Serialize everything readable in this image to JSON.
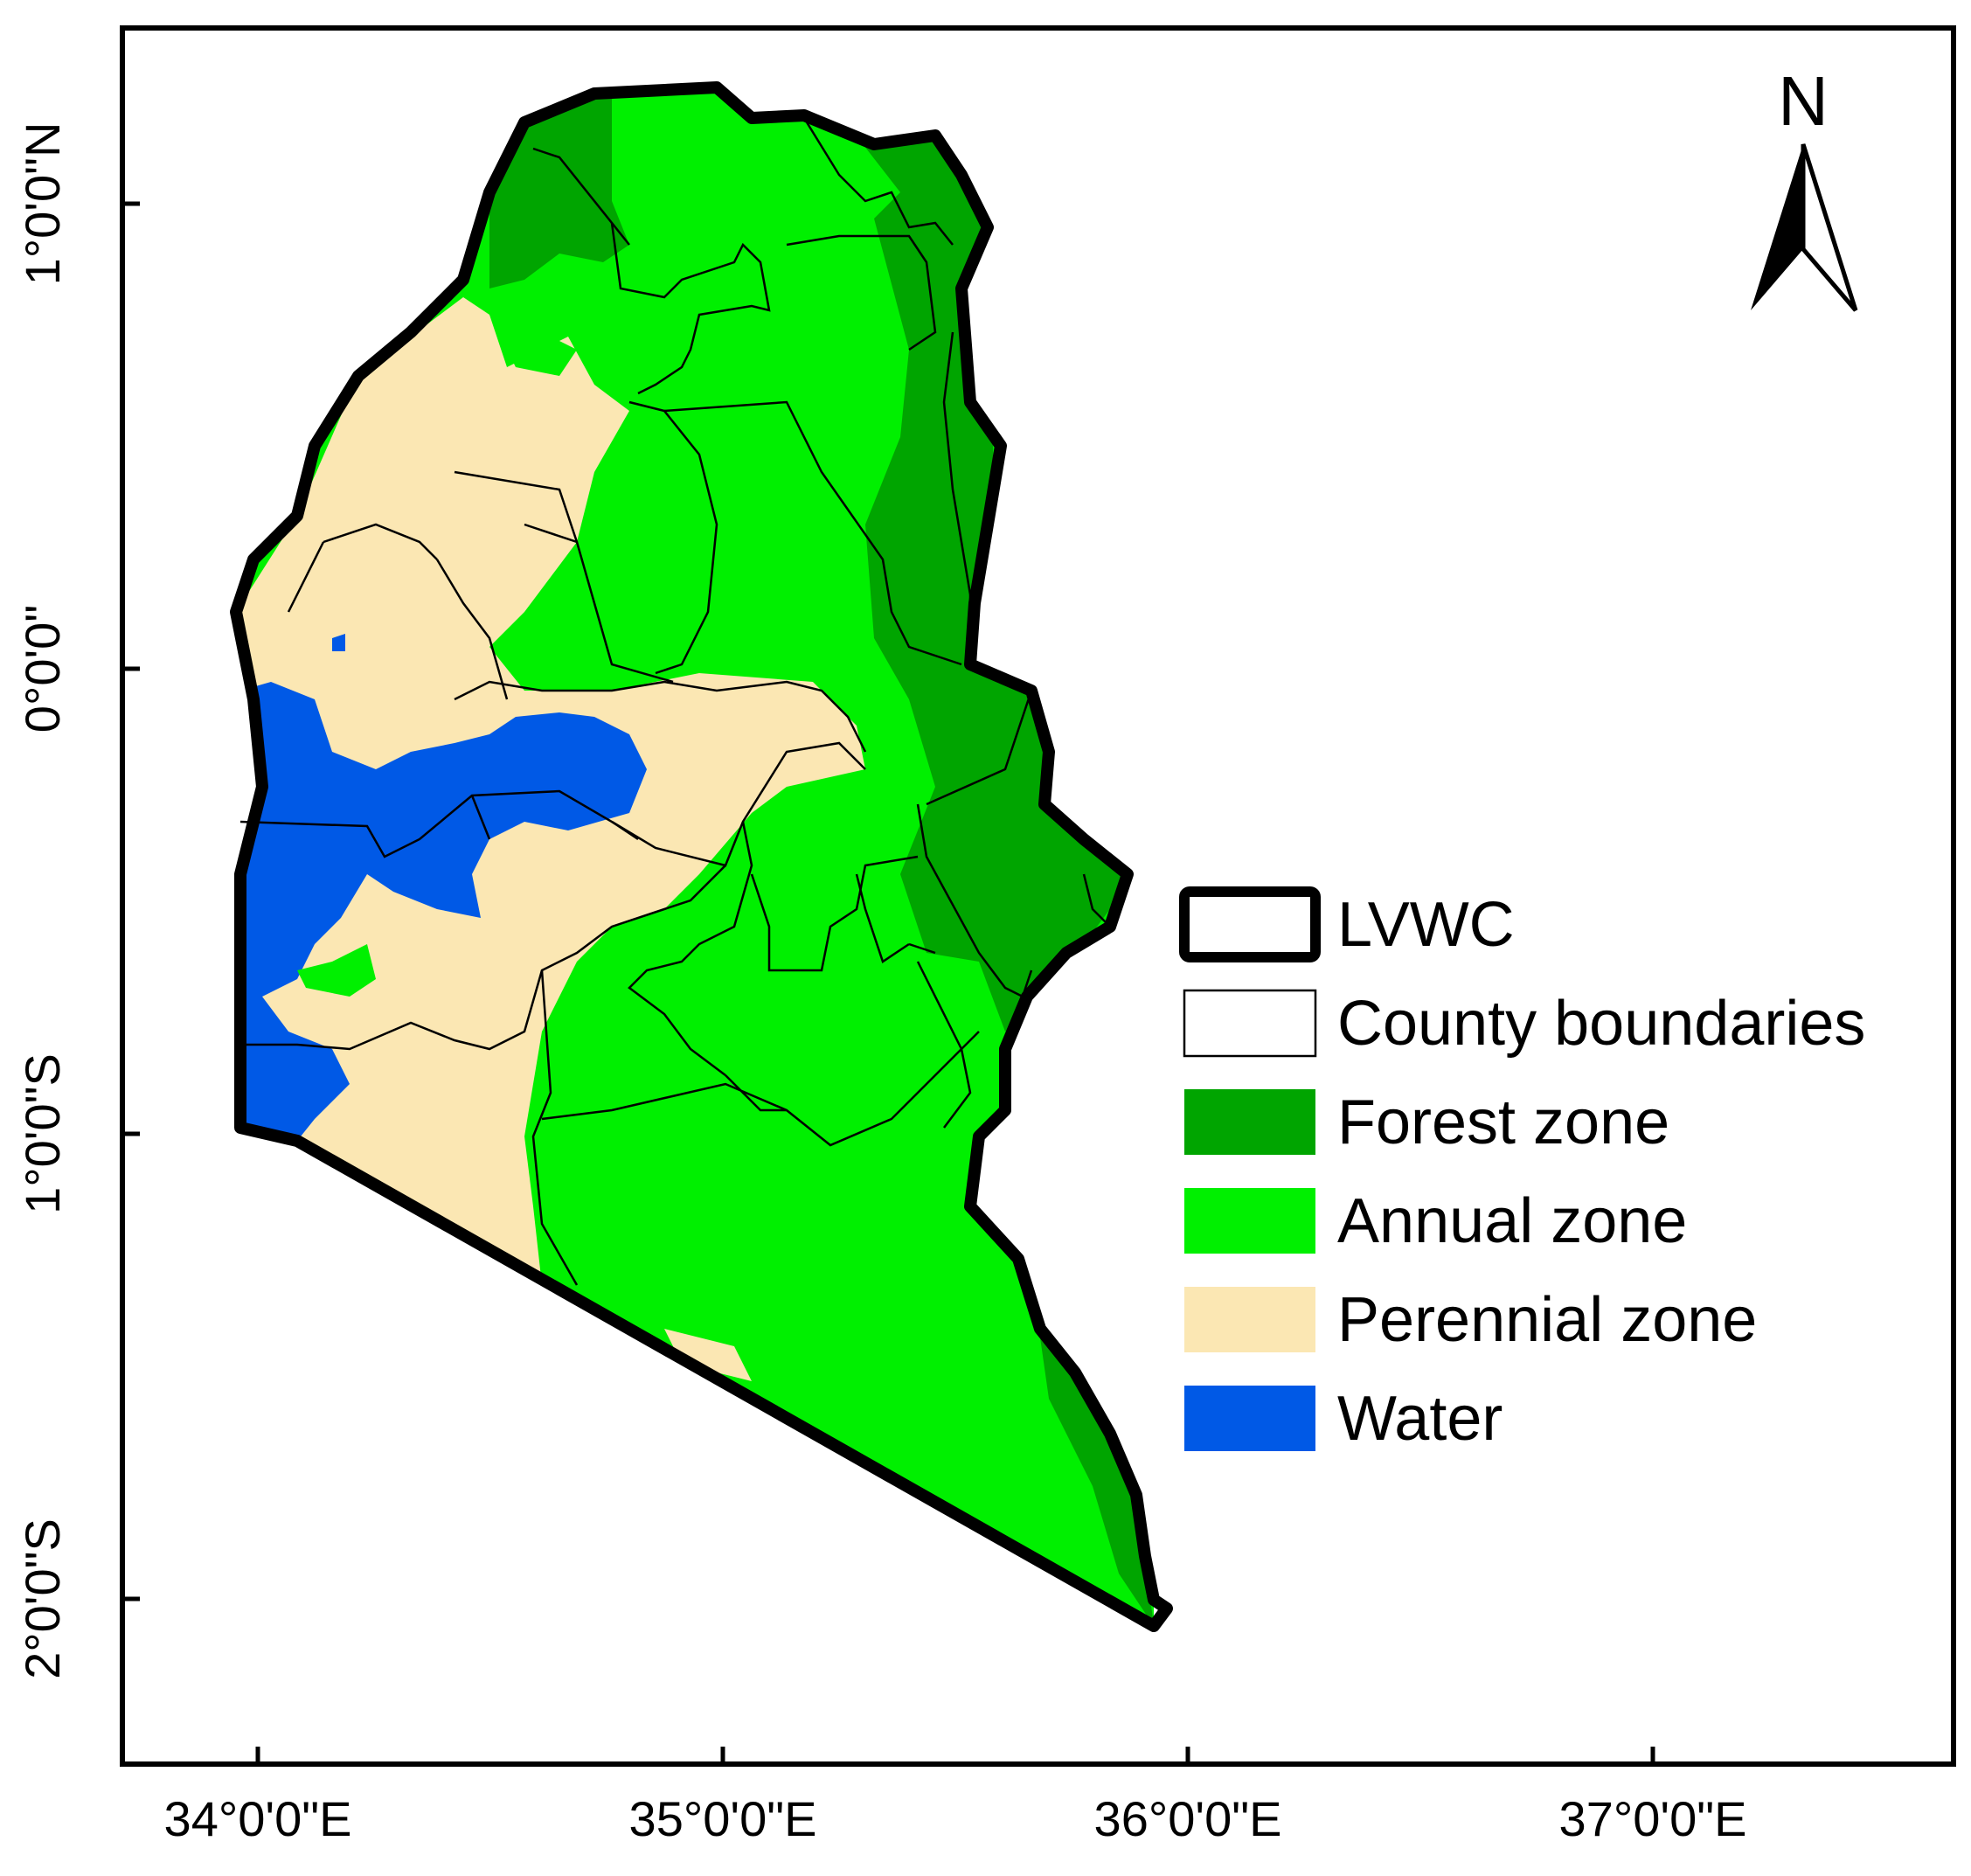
{
  "map": {
    "north_label": "N",
    "x_ticks": [
      {
        "label": "34°0'0\"E",
        "lon": 34
      },
      {
        "label": "35°0'0\"E",
        "lon": 35
      },
      {
        "label": "36°0'0\"E",
        "lon": 36
      },
      {
        "label": "37°0'0\"E",
        "lon": 37
      }
    ],
    "y_ticks": [
      {
        "label": "1°0'0\"N",
        "lat": 1
      },
      {
        "label": "0°0'0\"",
        "lat": 0
      },
      {
        "label": "1°0'0\"S",
        "lat": -1
      },
      {
        "label": "2°0'0\"S",
        "lat": -2
      }
    ]
  },
  "legend": {
    "items": [
      {
        "label": "LVWC",
        "symbol": "outline-thick",
        "color": "#000000"
      },
      {
        "label": "County boundaries",
        "symbol": "outline-thin",
        "color": "#000000"
      },
      {
        "label": "Forest zone",
        "symbol": "fill",
        "color": "#00a500"
      },
      {
        "label": "Annual zone",
        "symbol": "fill",
        "color": "#00f000"
      },
      {
        "label": "Perennial zone",
        "symbol": "fill",
        "color": "#fbe7b3"
      },
      {
        "label": "Water",
        "symbol": "fill",
        "color": "#0059e6"
      }
    ]
  },
  "colors": {
    "forest": "#00a500",
    "annual": "#00f000",
    "perennial": "#fbe7b3",
    "water": "#0059e6",
    "outline": "#000000"
  }
}
